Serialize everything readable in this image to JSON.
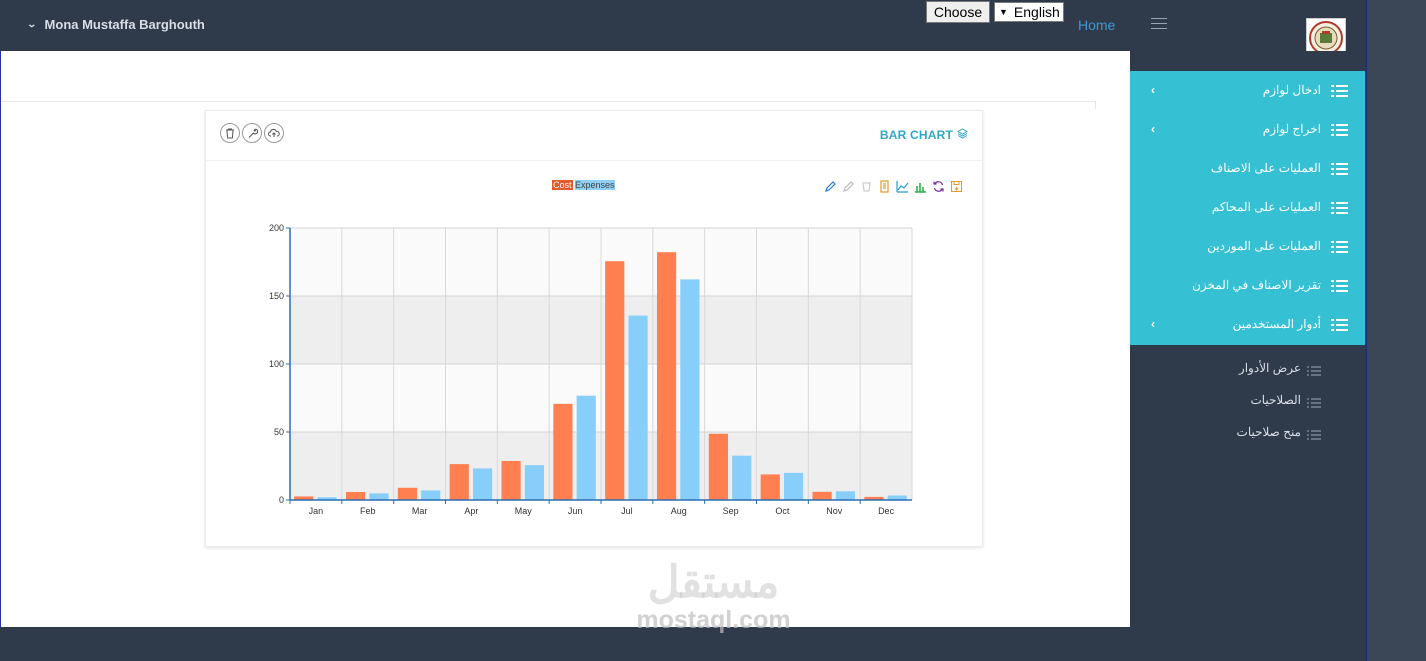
{
  "topbar": {
    "user_name": "Mona Mustaffa Barghouth",
    "choose_label": "Choose",
    "language": "English",
    "home_label": "Home"
  },
  "card": {
    "title": "BAR CHART"
  },
  "chart_legend": {
    "cost": "Cost",
    "expenses": "Expenses"
  },
  "chart_data": {
    "type": "bar",
    "categories": [
      "Jan",
      "Feb",
      "Mar",
      "Apr",
      "May",
      "Jun",
      "Jul",
      "Aug",
      "Sep",
      "Oct",
      "Nov",
      "Dec"
    ],
    "series": [
      {
        "name": "Cost",
        "color": "#ff7f50",
        "values": [
          2.6,
          5.9,
          9.0,
          26.4,
          28.7,
          70.7,
          175.6,
          182.2,
          48.7,
          18.8,
          6.0,
          2.3
        ]
      },
      {
        "name": "Expenses",
        "color": "#87cefa",
        "values": [
          2.0,
          4.9,
          7.0,
          23.2,
          25.6,
          76.7,
          135.6,
          162.2,
          32.6,
          20.0,
          6.4,
          3.3
        ]
      }
    ],
    "ylim": [
      0,
      200
    ],
    "yticks": [
      0,
      50,
      100,
      150,
      200
    ],
    "grid": true,
    "legend": "top-center"
  },
  "sidebar": {
    "items": [
      {
        "label": "ادخال لوازم",
        "has_children": true
      },
      {
        "label": "اخراج لوازم",
        "has_children": true
      },
      {
        "label": "العمليات على الاصناف",
        "has_children": false
      },
      {
        "label": "العمليات على المحاكم",
        "has_children": false
      },
      {
        "label": "العمليات على الموردين",
        "has_children": false
      },
      {
        "label": "تقرير الاصناف في المخزن",
        "has_children": false
      },
      {
        "label": "أدوار المستخدمين",
        "has_children": true
      }
    ],
    "sub_items": [
      {
        "label": "عرض الأدوار"
      },
      {
        "label": "الصلاحيات"
      },
      {
        "label": "منح صلاحيات"
      }
    ]
  },
  "watermark": {
    "arabic": "مستقل",
    "latin": "mostaql.com"
  },
  "colors": {
    "topbar": "#2f3a4a",
    "menu_accent": "#35c0d3",
    "title_accent": "#2fa7c7",
    "cost": "#ff7f50",
    "expenses": "#87cefa"
  },
  "icons": [
    "chevron-down-icon",
    "hamburger-icon",
    "logo-emblem",
    "trash-icon",
    "wrench-icon",
    "cloud-upload-icon",
    "layers-icon",
    "list-icon",
    "chevron-left-icon"
  ]
}
